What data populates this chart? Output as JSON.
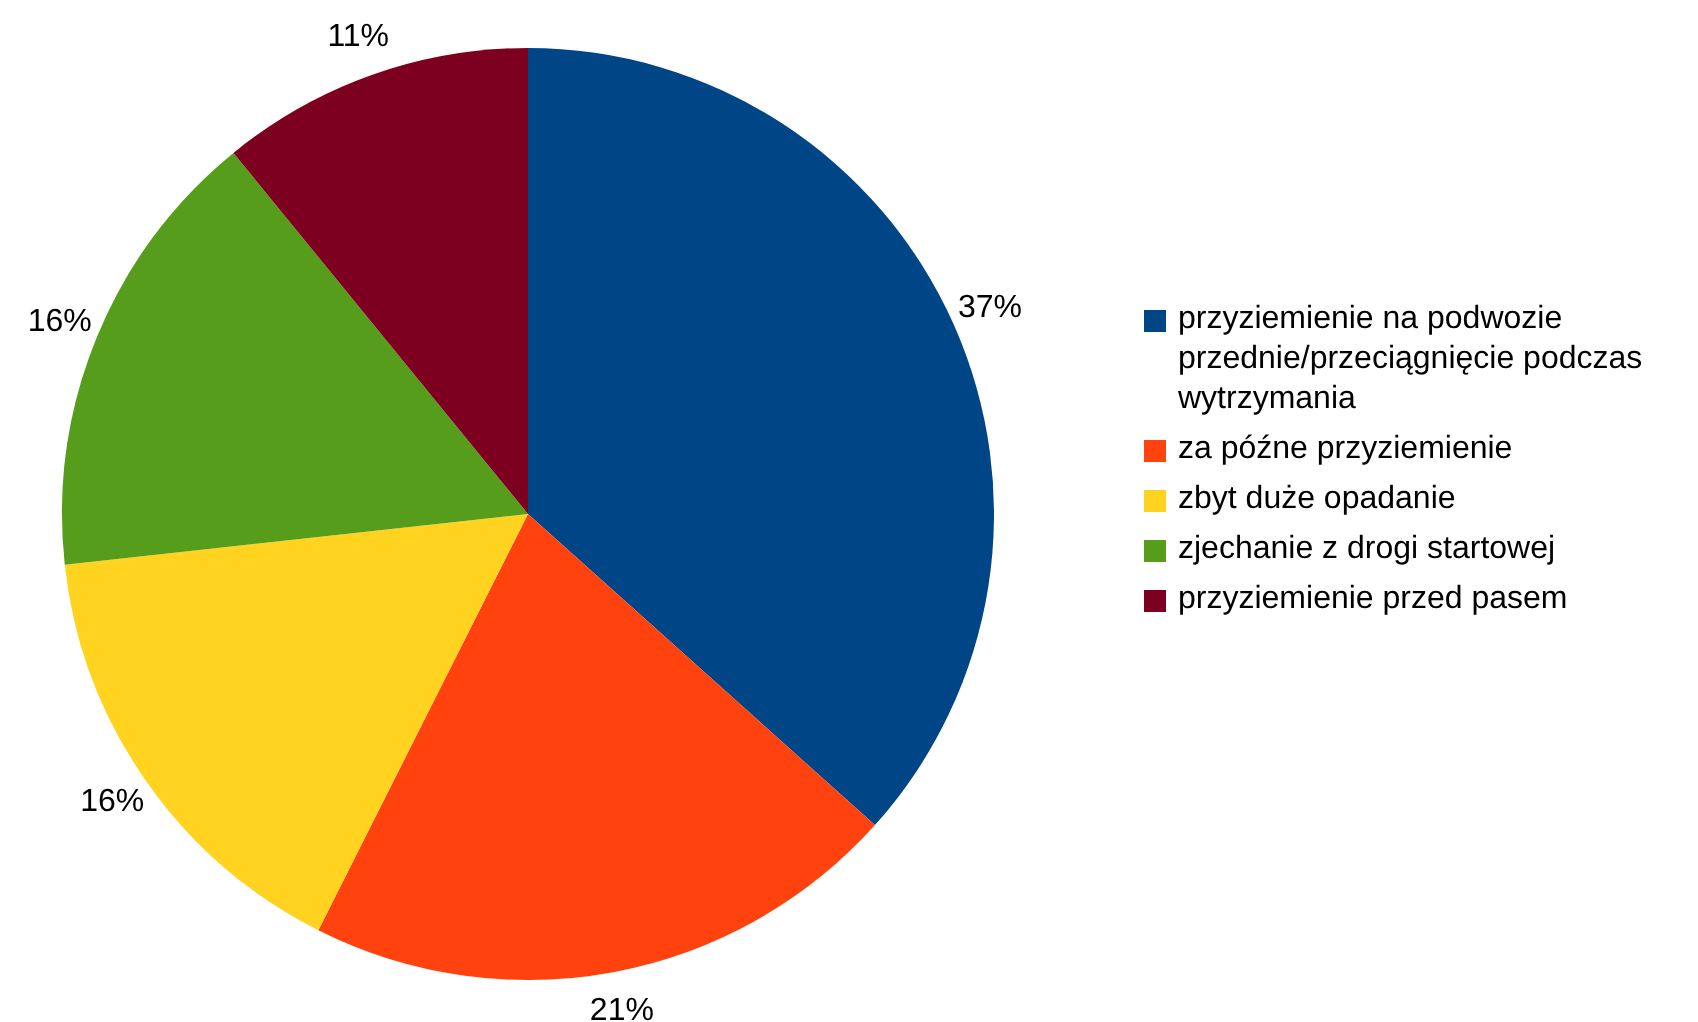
{
  "chart_data": {
    "type": "pie",
    "categories": [
      "przyziemienie na podwozie przednie/przeciągnięcie podczas wytrzymania",
      "za późne przyziemienie",
      "zbyt duże opadanie",
      "zjechanie z drogi startowej",
      "przyziemienie przed pasem"
    ],
    "values": [
      37,
      21,
      16,
      16,
      11
    ],
    "colors": [
      "#004586",
      "#ff420e",
      "#ffd320",
      "#579d1c",
      "#7e0021"
    ],
    "value_labels": [
      "37%",
      "21%",
      "16%",
      "16%",
      "11%"
    ],
    "legend": "right"
  }
}
